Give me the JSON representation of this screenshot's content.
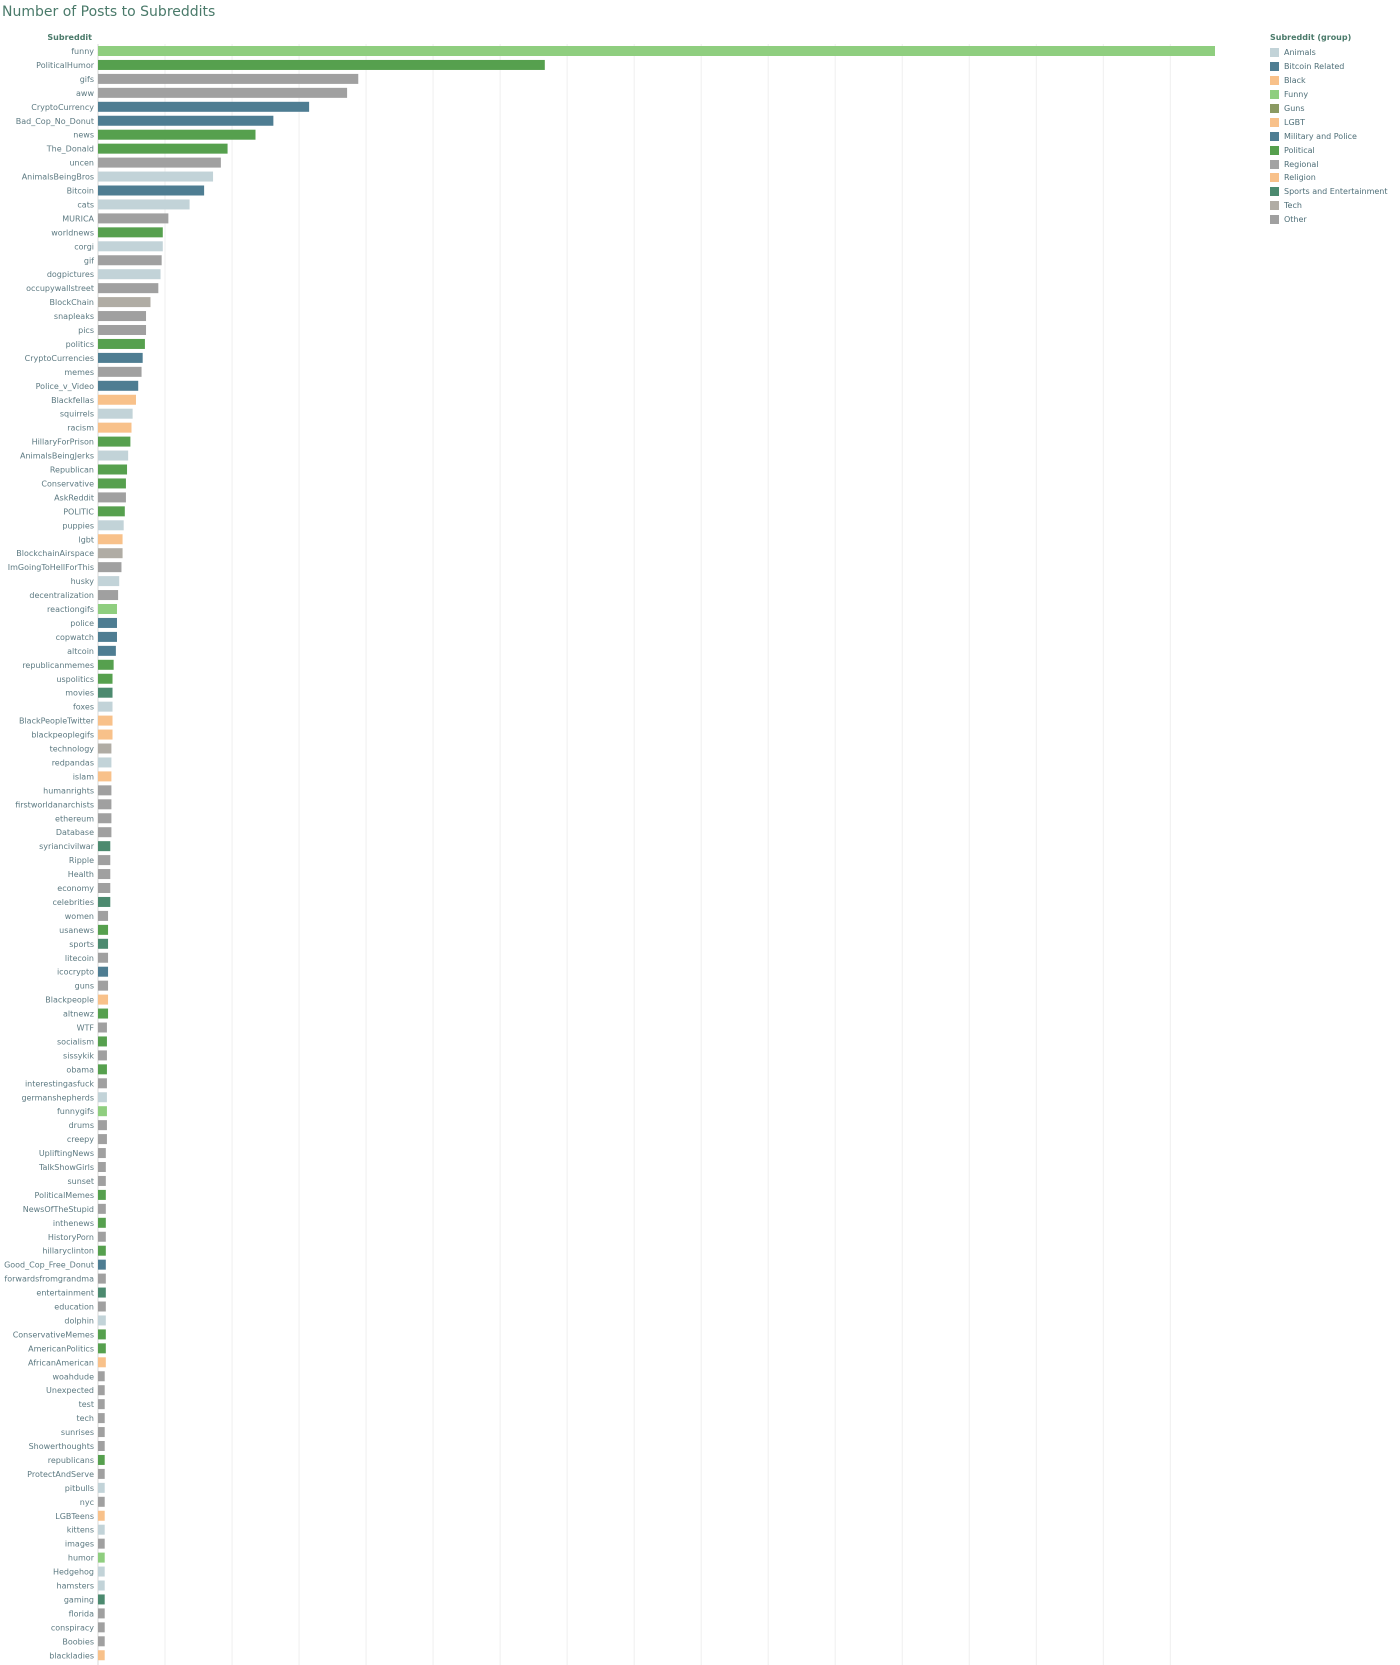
{
  "chart_data": {
    "type": "bar",
    "orientation": "horizontal",
    "title": "Number of Posts to Subreddits",
    "ylabel": "Subreddit",
    "xlabel": "",
    "grid": true,
    "legend_placement": "right",
    "xlim": [
      0,
      1000
    ],
    "legend": {
      "title": "Subreddit (group)",
      "items": [
        {
          "name": "Animals",
          "color": "#c2d3d8"
        },
        {
          "name": "Bitcoin Related",
          "color": "#4e7d92"
        },
        {
          "name": "Black",
          "color": "#f8c18a"
        },
        {
          "name": "Funny",
          "color": "#8fce7f"
        },
        {
          "name": "Guns",
          "color": "#8b9a62"
        },
        {
          "name": "LGBT",
          "color": "#f8c18a"
        },
        {
          "name": "Military and Police",
          "color": "#4e7d92"
        },
        {
          "name": "Political",
          "color": "#56a04e"
        },
        {
          "name": "Regional",
          "color": "#a3a3a3"
        },
        {
          "name": "Religion",
          "color": "#f8c18a"
        },
        {
          "name": "Sports and Entertainment",
          "color": "#4c8a6f"
        },
        {
          "name": "Tech",
          "color": "#b0aca4"
        },
        {
          "name": "Other",
          "color": "#a0a0a0"
        }
      ]
    },
    "bars": [
      {
        "label": "funny",
        "value": 1000,
        "group": "Funny"
      },
      {
        "label": "PoliticalHumor",
        "value": 400,
        "group": "Political"
      },
      {
        "label": "gifs",
        "value": 233,
        "group": "Other"
      },
      {
        "label": "aww",
        "value": 223,
        "group": "Other"
      },
      {
        "label": "CryptoCurrency",
        "value": 189,
        "group": "Bitcoin Related"
      },
      {
        "label": "Bad_Cop_No_Donut",
        "value": 157,
        "group": "Military and Police"
      },
      {
        "label": "news",
        "value": 141,
        "group": "Political"
      },
      {
        "label": "The_Donald",
        "value": 116,
        "group": "Political"
      },
      {
        "label": "uncen",
        "value": 110,
        "group": "Other"
      },
      {
        "label": "AnimalsBeingBros",
        "value": 103,
        "group": "Animals"
      },
      {
        "label": "Bitcoin",
        "value": 95,
        "group": "Bitcoin Related"
      },
      {
        "label": "cats",
        "value": 82,
        "group": "Animals"
      },
      {
        "label": "MURICA",
        "value": 63,
        "group": "Other"
      },
      {
        "label": "worldnews",
        "value": 58,
        "group": "Political"
      },
      {
        "label": "corgi",
        "value": 58,
        "group": "Animals"
      },
      {
        "label": "gif",
        "value": 57,
        "group": "Other"
      },
      {
        "label": "dogpictures",
        "value": 56,
        "group": "Animals"
      },
      {
        "label": "occupywallstreet",
        "value": 54,
        "group": "Other"
      },
      {
        "label": "BlockChain",
        "value": 47,
        "group": "Tech"
      },
      {
        "label": "snapleaks",
        "value": 43,
        "group": "Other"
      },
      {
        "label": "pics",
        "value": 43,
        "group": "Other"
      },
      {
        "label": "politics",
        "value": 42,
        "group": "Political"
      },
      {
        "label": "CryptoCurrencies",
        "value": 40,
        "group": "Bitcoin Related"
      },
      {
        "label": "memes",
        "value": 39,
        "group": "Other"
      },
      {
        "label": "Police_v_Video",
        "value": 36,
        "group": "Military and Police"
      },
      {
        "label": "Blackfellas",
        "value": 34,
        "group": "Black"
      },
      {
        "label": "squirrels",
        "value": 31,
        "group": "Animals"
      },
      {
        "label": "racism",
        "value": 30,
        "group": "Black"
      },
      {
        "label": "HillaryForPrison",
        "value": 29,
        "group": "Political"
      },
      {
        "label": "AnimalsBeingJerks",
        "value": 27,
        "group": "Animals"
      },
      {
        "label": "Republican",
        "value": 26,
        "group": "Political"
      },
      {
        "label": "Conservative",
        "value": 25,
        "group": "Political"
      },
      {
        "label": "AskReddit",
        "value": 25,
        "group": "Other"
      },
      {
        "label": "POLITIC",
        "value": 24,
        "group": "Political"
      },
      {
        "label": "puppies",
        "value": 23,
        "group": "Animals"
      },
      {
        "label": "lgbt",
        "value": 22,
        "group": "LGBT"
      },
      {
        "label": "BlockchainAirspace",
        "value": 22,
        "group": "Tech"
      },
      {
        "label": "ImGoingToHellForThis",
        "value": 21,
        "group": "Other"
      },
      {
        "label": "husky",
        "value": 19,
        "group": "Animals"
      },
      {
        "label": "decentralization",
        "value": 18,
        "group": "Other"
      },
      {
        "label": "reactiongifs",
        "value": 17,
        "group": "Funny"
      },
      {
        "label": "police",
        "value": 17,
        "group": "Military and Police"
      },
      {
        "label": "copwatch",
        "value": 17,
        "group": "Military and Police"
      },
      {
        "label": "altcoin",
        "value": 16,
        "group": "Bitcoin Related"
      },
      {
        "label": "republicanmemes",
        "value": 14,
        "group": "Political"
      },
      {
        "label": "uspolitics",
        "value": 13,
        "group": "Political"
      },
      {
        "label": "movies",
        "value": 13,
        "group": "Sports and Entertainment"
      },
      {
        "label": "foxes",
        "value": 13,
        "group": "Animals"
      },
      {
        "label": "BlackPeopleTwitter",
        "value": 13,
        "group": "Black"
      },
      {
        "label": "blackpeoplegifs",
        "value": 13,
        "group": "Black"
      },
      {
        "label": "technology",
        "value": 12,
        "group": "Tech"
      },
      {
        "label": "redpandas",
        "value": 12,
        "group": "Animals"
      },
      {
        "label": "islam",
        "value": 12,
        "group": "Religion"
      },
      {
        "label": "humanrights",
        "value": 12,
        "group": "Other"
      },
      {
        "label": "firstworldanarchists",
        "value": 12,
        "group": "Other"
      },
      {
        "label": "ethereum",
        "value": 12,
        "group": "Other"
      },
      {
        "label": "Database",
        "value": 12,
        "group": "Other"
      },
      {
        "label": "syriancivilwar",
        "value": 11,
        "group": "Sports and Entertainment"
      },
      {
        "label": "Ripple",
        "value": 11,
        "group": "Other"
      },
      {
        "label": "Health",
        "value": 11,
        "group": "Other"
      },
      {
        "label": "economy",
        "value": 11,
        "group": "Other"
      },
      {
        "label": "celebrities",
        "value": 11,
        "group": "Sports and Entertainment"
      },
      {
        "label": "women",
        "value": 9,
        "group": "Other"
      },
      {
        "label": "usanews",
        "value": 9,
        "group": "Political"
      },
      {
        "label": "sports",
        "value": 9,
        "group": "Sports and Entertainment"
      },
      {
        "label": "litecoin",
        "value": 9,
        "group": "Other"
      },
      {
        "label": "icocrypto",
        "value": 9,
        "group": "Bitcoin Related"
      },
      {
        "label": "guns",
        "value": 9,
        "group": "Other"
      },
      {
        "label": "Blackpeople",
        "value": 9,
        "group": "Black"
      },
      {
        "label": "altnewz",
        "value": 9,
        "group": "Political"
      },
      {
        "label": "WTF",
        "value": 8,
        "group": "Other"
      },
      {
        "label": "socialism",
        "value": 8,
        "group": "Political"
      },
      {
        "label": "sissykik",
        "value": 8,
        "group": "Other"
      },
      {
        "label": "obama",
        "value": 8,
        "group": "Political"
      },
      {
        "label": "interestingasfuck",
        "value": 8,
        "group": "Other"
      },
      {
        "label": "germanshepherds",
        "value": 8,
        "group": "Animals"
      },
      {
        "label": "funnygifs",
        "value": 8,
        "group": "Funny"
      },
      {
        "label": "drums",
        "value": 8,
        "group": "Other"
      },
      {
        "label": "creepy",
        "value": 8,
        "group": "Other"
      },
      {
        "label": "UpliftingNews",
        "value": 7,
        "group": "Other"
      },
      {
        "label": "TalkShowGirls",
        "value": 7,
        "group": "Other"
      },
      {
        "label": "sunset",
        "value": 7,
        "group": "Other"
      },
      {
        "label": "PoliticalMemes",
        "value": 7,
        "group": "Political"
      },
      {
        "label": "NewsOfTheStupid",
        "value": 7,
        "group": "Other"
      },
      {
        "label": "inthenews",
        "value": 7,
        "group": "Political"
      },
      {
        "label": "HistoryPorn",
        "value": 7,
        "group": "Other"
      },
      {
        "label": "hillaryclinton",
        "value": 7,
        "group": "Political"
      },
      {
        "label": "Good_Cop_Free_Donut",
        "value": 7,
        "group": "Military and Police"
      },
      {
        "label": "forwardsfromgrandma",
        "value": 7,
        "group": "Other"
      },
      {
        "label": "entertainment",
        "value": 7,
        "group": "Sports and Entertainment"
      },
      {
        "label": "education",
        "value": 7,
        "group": "Other"
      },
      {
        "label": "dolphin",
        "value": 7,
        "group": "Animals"
      },
      {
        "label": "ConservativeMemes",
        "value": 7,
        "group": "Political"
      },
      {
        "label": "AmericanPolitics",
        "value": 7,
        "group": "Political"
      },
      {
        "label": "AfricanAmerican",
        "value": 7,
        "group": "Black"
      },
      {
        "label": "woahdude",
        "value": 6,
        "group": "Other"
      },
      {
        "label": "Unexpected",
        "value": 6,
        "group": "Other"
      },
      {
        "label": "test",
        "value": 6,
        "group": "Other"
      },
      {
        "label": "tech",
        "value": 6,
        "group": "Other"
      },
      {
        "label": "sunrises",
        "value": 6,
        "group": "Other"
      },
      {
        "label": "Showerthoughts",
        "value": 6,
        "group": "Other"
      },
      {
        "label": "republicans",
        "value": 6,
        "group": "Political"
      },
      {
        "label": "ProtectAndServe",
        "value": 6,
        "group": "Other"
      },
      {
        "label": "pitbulls",
        "value": 6,
        "group": "Animals"
      },
      {
        "label": "nyc",
        "value": 6,
        "group": "Other"
      },
      {
        "label": "LGBTeens",
        "value": 6,
        "group": "LGBT"
      },
      {
        "label": "kittens",
        "value": 6,
        "group": "Animals"
      },
      {
        "label": "images",
        "value": 6,
        "group": "Other"
      },
      {
        "label": "humor",
        "value": 6,
        "group": "Funny"
      },
      {
        "label": "Hedgehog",
        "value": 6,
        "group": "Animals"
      },
      {
        "label": "hamsters",
        "value": 6,
        "group": "Animals"
      },
      {
        "label": "gaming",
        "value": 6,
        "group": "Sports and Entertainment"
      },
      {
        "label": "florida",
        "value": 6,
        "group": "Other"
      },
      {
        "label": "conspiracy",
        "value": 6,
        "group": "Other"
      },
      {
        "label": "Boobies",
        "value": 6,
        "group": "Other"
      },
      {
        "label": "blackladies",
        "value": 6,
        "group": "Black"
      }
    ]
  }
}
